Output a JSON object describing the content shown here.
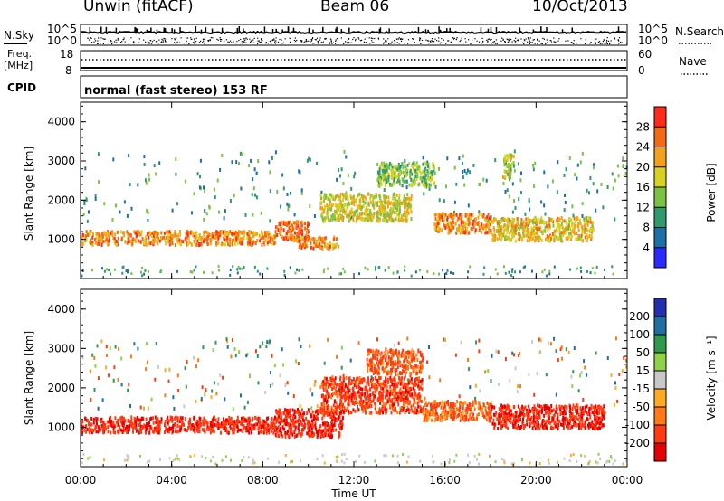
{
  "header": {
    "station_title": "Unwin (fitACF)",
    "beam": "Beam 06",
    "date": "10/Oct/2013"
  },
  "strip_panels": {
    "nsky": {
      "label": "N.Sky",
      "left_ticks": [
        "10^5",
        "10^0"
      ],
      "right_ticks": [
        "10^5",
        "10^0"
      ],
      "right_label": "N.Search"
    },
    "freq": {
      "label_line1": "Freq.",
      "label_line2": "[MHz]",
      "left_ticks": [
        "18",
        "8"
      ],
      "right_ticks": [
        "60",
        "0"
      ],
      "right_label": "Nave"
    },
    "cpid": {
      "label": "CPID",
      "text": "normal (fast stereo) 153 RF"
    }
  },
  "colors": {
    "power_scale": [
      "#2b2bff",
      "#1c6fa8",
      "#2e9a6e",
      "#7cc242",
      "#d8d020",
      "#f2a21a",
      "#f26a12",
      "#ff2a1a"
    ],
    "velocity_scale": [
      "#2230b0",
      "#1f6fa3",
      "#2f9a4e",
      "#8fd24a",
      "#c8c8c8",
      "#ffaa22",
      "#ff7a14",
      "#ff3b12",
      "#e60000"
    ],
    "frame": "#000000"
  },
  "chart_data": [
    {
      "type": "heatmap",
      "title": "",
      "xlabel": "Time UT",
      "ylabel": "Slant Range [km]",
      "xlim": [
        0,
        24
      ],
      "ylim": [
        0,
        4500
      ],
      "x_ticks": [
        "00:00",
        "04:00",
        "08:00",
        "12:00",
        "16:00",
        "20:00",
        "00:00"
      ],
      "y_ticks": [
        "1000",
        "2000",
        "3000",
        "4000"
      ],
      "colorbar": {
        "label": "Power [dB]",
        "range": [
          0,
          32
        ],
        "ticks": [
          "4",
          "8",
          "12",
          "16",
          "20",
          "24",
          "28"
        ]
      },
      "regions": [
        {
          "t0": 0.0,
          "t1": 8.5,
          "r0": 900,
          "r1": 1250,
          "mean_power": 24
        },
        {
          "t0": 8.5,
          "t1": 10.0,
          "r0": 1000,
          "r1": 1500,
          "mean_power": 26
        },
        {
          "t0": 9.5,
          "t1": 11.3,
          "r0": 800,
          "r1": 1100,
          "mean_power": 24
        },
        {
          "t0": 10.5,
          "t1": 14.5,
          "r0": 1500,
          "r1": 2200,
          "mean_power": 18
        },
        {
          "t0": 13.0,
          "t1": 15.5,
          "r0": 2400,
          "r1": 3000,
          "mean_power": 14
        },
        {
          "t0": 15.5,
          "t1": 18.0,
          "r0": 1200,
          "r1": 1700,
          "mean_power": 24
        },
        {
          "t0": 18.0,
          "t1": 22.5,
          "r0": 1000,
          "r1": 1600,
          "mean_power": 20
        },
        {
          "t0": 18.5,
          "t1": 19.0,
          "r0": 2600,
          "r1": 3200,
          "mean_power": 16
        }
      ]
    },
    {
      "type": "heatmap",
      "title": "",
      "xlabel": "Time UT",
      "ylabel": "Slant Range [km]",
      "xlim": [
        0,
        24
      ],
      "ylim": [
        0,
        4500
      ],
      "x_ticks": [
        "00:00",
        "04:00",
        "08:00",
        "12:00",
        "16:00",
        "20:00",
        "00:00"
      ],
      "y_ticks": [
        "1000",
        "2000",
        "3000",
        "4000"
      ],
      "colorbar": {
        "label": "Velocity [m s⁻¹]",
        "ticks": [
          "200",
          "100",
          "50",
          "15",
          "-15",
          "-50",
          "-100",
          "-200"
        ]
      },
      "regions": [
        {
          "t0": 0.0,
          "t1": 8.5,
          "r0": 900,
          "r1": 1300,
          "mean_velocity": -180
        },
        {
          "t0": 8.5,
          "t1": 11.5,
          "r0": 800,
          "r1": 1500,
          "mean_velocity": -200
        },
        {
          "t0": 10.5,
          "t1": 15.0,
          "r0": 1400,
          "r1": 2300,
          "mean_velocity": -150
        },
        {
          "t0": 12.5,
          "t1": 15.0,
          "r0": 2400,
          "r1": 3000,
          "mean_velocity": -120
        },
        {
          "t0": 15.0,
          "t1": 18.0,
          "r0": 1200,
          "r1": 1700,
          "mean_velocity": -100
        },
        {
          "t0": 18.0,
          "t1": 23.0,
          "r0": 1000,
          "r1": 1600,
          "mean_velocity": -180
        }
      ]
    }
  ]
}
